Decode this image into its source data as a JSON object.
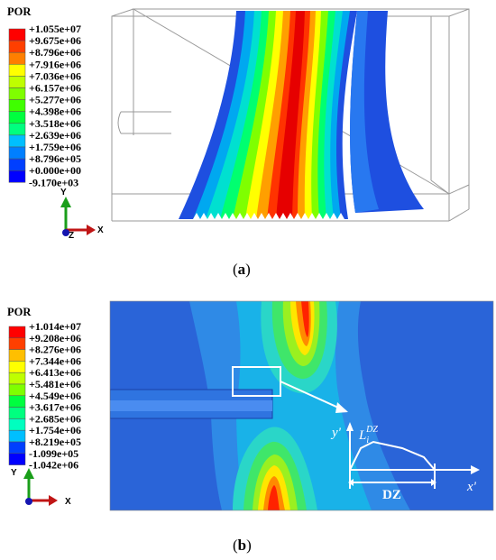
{
  "panel_a": {
    "legend_title": "POR",
    "legend_values": [
      "+1.055e+07",
      "+9.675e+06",
      "+8.796e+06",
      "+7.916e+06",
      "+7.036e+06",
      "+6.157e+06",
      "+5.277e+06",
      "+4.398e+06",
      "+3.518e+06",
      "+2.639e+06",
      "+1.759e+06",
      "+8.796e+05",
      "+0.000e+00",
      "-9.170e+03"
    ],
    "axis_y": "Y",
    "axis_x": "X",
    "axis_z": "Z",
    "caption_open": "(",
    "caption_letter": "a",
    "caption_close": ")"
  },
  "panel_b": {
    "legend_title": "POR",
    "legend_values": [
      "+1.014e+07",
      "+9.208e+06",
      "+8.276e+06",
      "+7.344e+06",
      "+6.413e+06",
      "+5.481e+06",
      "+4.549e+06",
      "+3.617e+06",
      "+2.685e+06",
      "+1.754e+06",
      "+8.219e+05",
      "-1.099e+05",
      "-1.042e+06"
    ],
    "axis_y": "Y",
    "axis_x": "X",
    "y_prime": "y'",
    "x_prime": "x'",
    "L_label": "L",
    "L_sub": "i",
    "L_sup": "DZ",
    "dz_label": "DZ",
    "caption_open": "(",
    "caption_letter": "b",
    "caption_close": ")"
  },
  "colors": {
    "contour": [
      "#ff0000",
      "#ff3f00",
      "#ff7f00",
      "#ffbf00",
      "#ffff00",
      "#bfff00",
      "#7fff00",
      "#3fff00",
      "#00ff3f",
      "#00ff7f",
      "#00ffbf",
      "#00bfff",
      "#007fff",
      "#003fff",
      "#0000ff"
    ],
    "background_b": "#2a64d8"
  }
}
